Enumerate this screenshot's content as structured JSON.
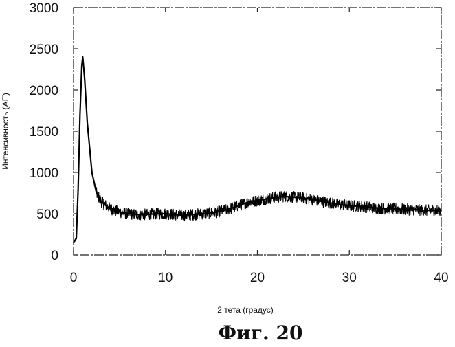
{
  "chart_data": {
    "type": "line",
    "title": "",
    "xlabel": "2 тета (градус)",
    "ylabel": "Интенсивность (АЕ)",
    "xlim": [
      0,
      40
    ],
    "ylim": [
      0,
      3000
    ],
    "x_ticks": [
      "0",
      "10",
      "20",
      "30",
      "40"
    ],
    "y_ticks": [
      "0",
      "500",
      "1000",
      "1500",
      "2000",
      "2500",
      "3000"
    ],
    "grid": false,
    "legend": "none",
    "series": [
      {
        "x": [
          0,
          0.3,
          0.5,
          0.7,
          0.9,
          1.0,
          1.2,
          1.5,
          2.0,
          2.5,
          3.0,
          3.5,
          4.0,
          4.5,
          5,
          6,
          7,
          8,
          9,
          10,
          11,
          12,
          13,
          14,
          15,
          16,
          17,
          18,
          19,
          20,
          21,
          22,
          23,
          24,
          25,
          26,
          27,
          28,
          29,
          30,
          31,
          32,
          33,
          34,
          35,
          36,
          37,
          38,
          39,
          40
        ],
        "y": [
          150,
          200,
          800,
          1700,
          2300,
          2400,
          2150,
          1600,
          1000,
          750,
          650,
          600,
          560,
          540,
          520,
          500,
          490,
          490,
          500,
          500,
          490,
          480,
          490,
          500,
          510,
          530,
          560,
          600,
          640,
          660,
          680,
          700,
          710,
          700,
          690,
          670,
          650,
          630,
          610,
          600,
          590,
          580,
          570,
          560,
          560,
          550,
          550,
          540,
          540,
          540
        ],
        "noise": 70,
        "color": "#000000"
      }
    ]
  },
  "caption": "Фиг. 20"
}
